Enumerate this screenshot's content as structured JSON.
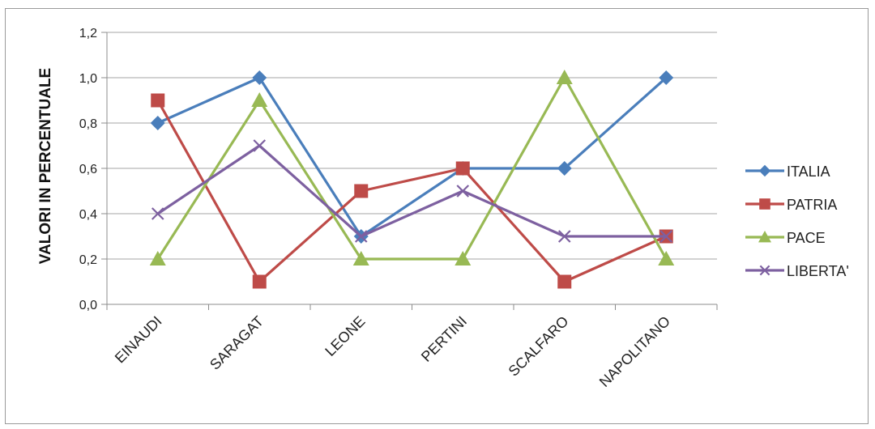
{
  "chart_data": {
    "type": "line",
    "title": "",
    "xlabel": "",
    "ylabel": "VALORI IN PERCENTUALE",
    "categories": [
      "EINAUDI",
      "SARAGAT",
      "LEONE",
      "PERTINI",
      "SCALFARO",
      "NAPOLITANO"
    ],
    "ylim": [
      0,
      1.2
    ],
    "yticks": [
      "0,0",
      "0,2",
      "0,4",
      "0,6",
      "0,8",
      "1,0",
      "1,2"
    ],
    "grid": true,
    "legend_position": "right",
    "series": [
      {
        "name": "ITALIA",
        "color": "#4a7ebb",
        "marker": "diamond",
        "values": [
          0.8,
          1.0,
          0.3,
          0.6,
          0.6,
          1.0
        ]
      },
      {
        "name": "PATRIA",
        "color": "#be4b48",
        "marker": "square",
        "values": [
          0.9,
          0.1,
          0.5,
          0.6,
          0.1,
          0.3
        ]
      },
      {
        "name": "PACE",
        "color": "#98b954",
        "marker": "triangle",
        "values": [
          0.2,
          0.9,
          0.2,
          0.2,
          1.0,
          0.2
        ]
      },
      {
        "name": "LIBERTA'",
        "color": "#7d60a0",
        "marker": "x",
        "values": [
          0.4,
          0.7,
          0.3,
          0.5,
          0.3,
          0.3
        ]
      }
    ]
  }
}
